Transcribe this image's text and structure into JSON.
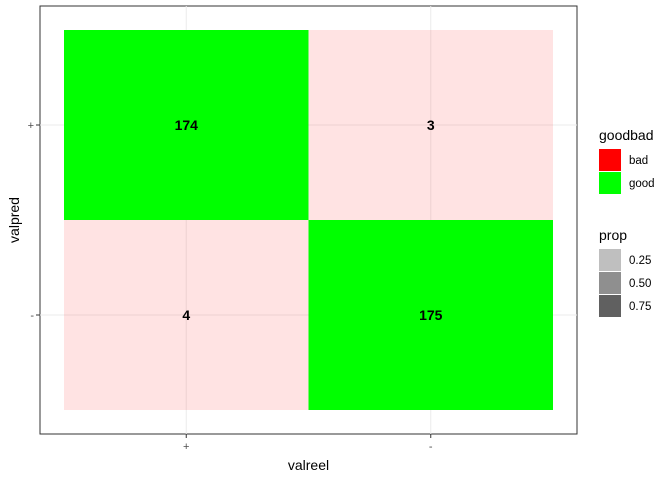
{
  "chart_data": {
    "type": "heatmap",
    "xlabel": "valreel",
    "ylabel": "valpred",
    "x_categories": [
      "+",
      "-"
    ],
    "y_categories": [
      "+",
      "-"
    ],
    "cells": [
      {
        "x": "+",
        "y": "+",
        "value": 174,
        "goodbad": "good",
        "prop": 0.49
      },
      {
        "x": "-",
        "y": "+",
        "value": 3,
        "goodbad": "bad",
        "prop": 0.01
      },
      {
        "x": "+",
        "y": "-",
        "value": 4,
        "goodbad": "bad",
        "prop": 0.01
      },
      {
        "x": "-",
        "y": "-",
        "value": 175,
        "goodbad": "good",
        "prop": 0.49
      }
    ],
    "grid": true,
    "legend_placement": "right",
    "legends": [
      {
        "title": "goodbad",
        "items": [
          {
            "label": "bad",
            "color": "#ff0000"
          },
          {
            "label": "good",
            "color": "#00ff00"
          }
        ]
      },
      {
        "title": "prop",
        "items": [
          {
            "label": "0.25",
            "color": "#bfbfbf"
          },
          {
            "label": "0.50",
            "color": "#8f8f8f"
          },
          {
            "label": "0.75",
            "color": "#606060"
          }
        ]
      }
    ]
  }
}
